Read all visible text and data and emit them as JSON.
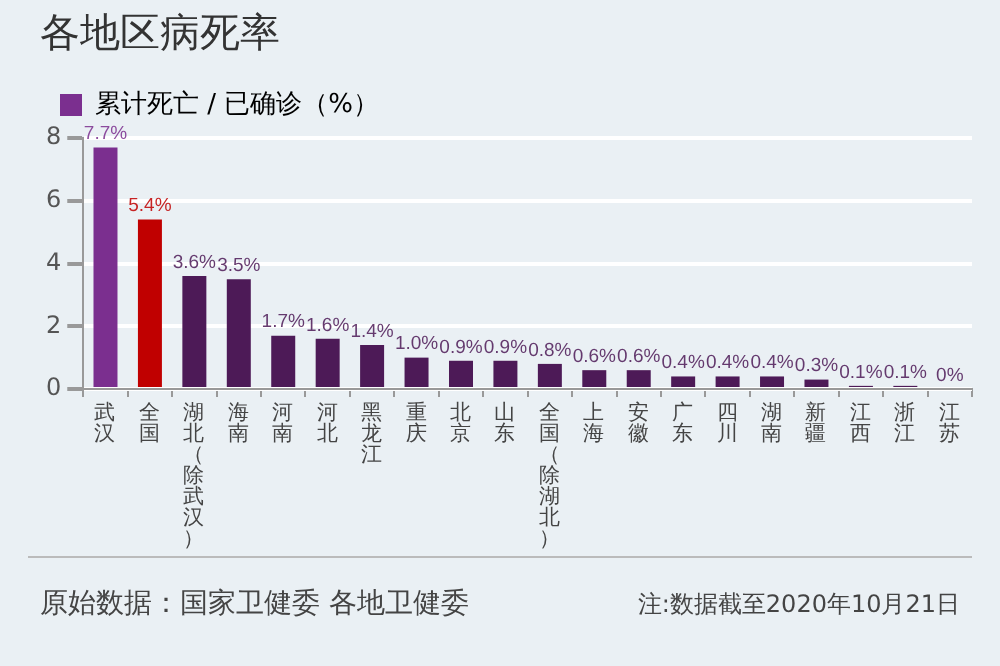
{
  "chart_data": {
    "type": "bar",
    "title": "各地区病死率",
    "categories": [
      "武汉",
      "全国",
      "湖北（除武汉）",
      "海南",
      "河南",
      "河北",
      "黑龙江",
      "重庆",
      "北京",
      "山东",
      "全国（除湖北）",
      "上海",
      "安徽",
      "广东",
      "四川",
      "湖南",
      "新疆",
      "江西",
      "浙江",
      "江苏"
    ],
    "series": [
      {
        "name": "累计死亡 / 已确诊（%）",
        "color": "#7b2f8f",
        "colors": [
          "#7b2f8f",
          "#c00000",
          "#4d1a57",
          "#4d1a57",
          "#4d1a57",
          "#4d1a57",
          "#4d1a57",
          "#4d1a57",
          "#4d1a57",
          "#4d1a57",
          "#4d1a57",
          "#4d1a57",
          "#4d1a57",
          "#4d1a57",
          "#4d1a57",
          "#4d1a57",
          "#4d1a57",
          "#4d1a57",
          "#4d1a57",
          "#4d1a57"
        ],
        "values": [
          7.7,
          5.4,
          3.6,
          3.5,
          1.7,
          1.6,
          1.4,
          1.0,
          0.9,
          0.9,
          0.8,
          0.6,
          0.6,
          0.4,
          0.4,
          0.4,
          0.3,
          0.1,
          0.1,
          0
        ],
        "value_labels": [
          "7.7%",
          "5.4%",
          "3.6%",
          "3.5%",
          "1.7%",
          "1.6%",
          "1.4%",
          "1.0%",
          "0.9%",
          "0.9%",
          "0.8%",
          "0.6%",
          "0.6%",
          "0.4%",
          "0.4%",
          "0.4%",
          "0.3%",
          "0.1%",
          "0.1%",
          "0%"
        ]
      }
    ],
    "ylim": [
      0,
      8
    ],
    "yticks": [
      0,
      2,
      4,
      6,
      8
    ],
    "grid": "y",
    "legend": "top left",
    "annotations": [
      "原始数据：国家卫健委 各地卫健委",
      "注:数据截至2020年10月21日"
    ]
  }
}
